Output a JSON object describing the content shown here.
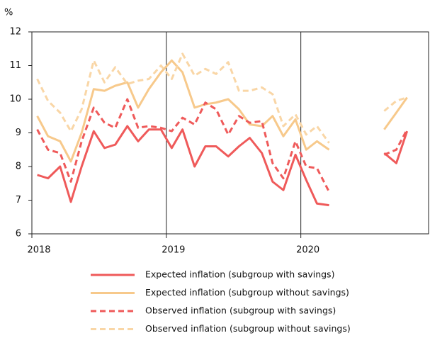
{
  "chart_data": {
    "type": "line",
    "y_label": "%",
    "x": [
      2018.04,
      2018.12,
      2018.21,
      2018.29,
      2018.37,
      2018.46,
      2018.54,
      2018.62,
      2018.71,
      2018.79,
      2018.87,
      2018.96,
      2019.04,
      2019.12,
      2019.21,
      2019.29,
      2019.37,
      2019.46,
      2019.54,
      2019.62,
      2019.71,
      2019.79,
      2019.87,
      2019.96,
      2020.04,
      2020.12,
      2020.21,
      2020.29,
      2020.37,
      2020.46,
      2020.54,
      2020.62,
      2020.71,
      2020.79
    ],
    "xlim": [
      2018,
      2020.95
    ],
    "xticks": [
      2018,
      2019,
      2020
    ],
    "ylim": [
      6,
      12
    ],
    "yticks": [
      6,
      7,
      8,
      9,
      10,
      11,
      12
    ],
    "series": [
      {
        "name": "Expected inflation (subgroup with savings)",
        "color": "#ef5a5a",
        "dashed": false,
        "values": [
          7.75,
          7.65,
          8.0,
          6.95,
          8.0,
          9.05,
          8.55,
          8.65,
          9.2,
          8.75,
          9.1,
          9.1,
          8.55,
          9.1,
          8.0,
          8.6,
          8.6,
          8.3,
          8.6,
          8.85,
          8.4,
          7.55,
          7.3,
          8.35,
          7.6,
          6.9,
          6.85,
          null,
          null,
          null,
          null,
          8.4,
          8.1,
          9.05
        ]
      },
      {
        "name": "Expected inflation (subgroup without savings)",
        "color": "#f7c98b",
        "dashed": false,
        "values": [
          9.5,
          8.9,
          8.75,
          8.15,
          9.0,
          10.3,
          10.25,
          10.4,
          10.5,
          9.75,
          10.3,
          10.8,
          11.15,
          10.8,
          9.75,
          9.85,
          9.9,
          10.0,
          9.7,
          9.25,
          9.2,
          9.5,
          8.9,
          9.4,
          8.5,
          8.75,
          8.5,
          null,
          null,
          null,
          null,
          9.1,
          9.6,
          10.05
        ]
      },
      {
        "name": "Observed inflation (subgroup with savings)",
        "color": "#ef5a5a",
        "dashed": true,
        "values": [
          9.1,
          8.5,
          8.4,
          7.55,
          8.75,
          9.75,
          9.3,
          9.15,
          10.0,
          9.15,
          9.2,
          9.15,
          9.05,
          9.45,
          9.25,
          9.9,
          9.7,
          8.95,
          9.5,
          9.3,
          9.35,
          8.1,
          7.65,
          8.75,
          8.0,
          7.95,
          7.25,
          null,
          null,
          null,
          null,
          8.35,
          8.5,
          9.1
        ]
      },
      {
        "name": "Observed inflation (subgroup without savings)",
        "color": "#f9d6a6",
        "dashed": true,
        "values": [
          10.6,
          9.95,
          9.6,
          9.05,
          9.7,
          11.15,
          10.5,
          10.95,
          10.45,
          10.55,
          10.6,
          11.0,
          10.6,
          11.35,
          10.7,
          10.9,
          10.75,
          11.1,
          10.25,
          10.25,
          10.35,
          10.15,
          9.2,
          9.55,
          8.95,
          9.2,
          8.7,
          null,
          null,
          null,
          null,
          9.65,
          9.95,
          10.05
        ]
      }
    ]
  }
}
